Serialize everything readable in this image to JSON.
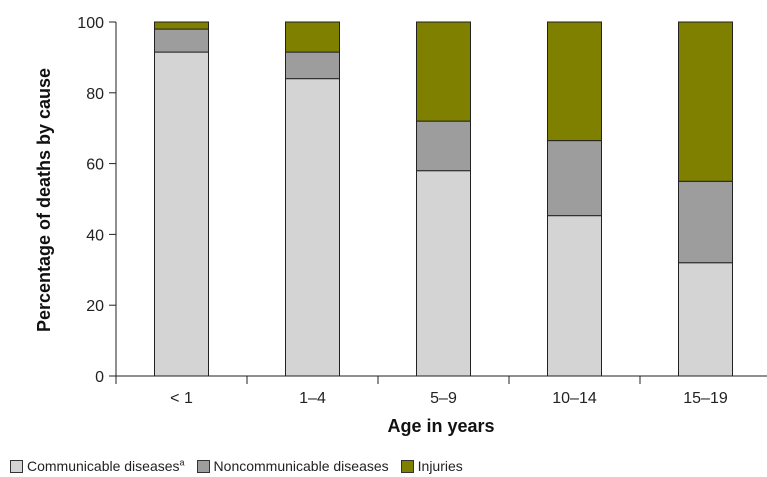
{
  "chart_data": {
    "type": "bar",
    "stacked": true,
    "categories": [
      "< 1",
      "1–4",
      "5–9",
      "10–14",
      "15–19"
    ],
    "series": [
      {
        "name": "Communicable diseases",
        "name_sup": "a",
        "color": "#d4d4d4",
        "values": [
          91.5,
          84,
          58,
          45.3,
          32
        ]
      },
      {
        "name": "Noncommunicable diseases",
        "color": "#9d9d9d",
        "values": [
          6.5,
          7.5,
          14,
          21.2,
          23
        ]
      },
      {
        "name": "Injuries",
        "color": "#7f7f00",
        "values": [
          2,
          8.5,
          28,
          33.5,
          45
        ]
      }
    ],
    "xlabel": "Age in years",
    "ylabel": "Percentage of deaths by cause",
    "ylim": [
      0,
      100
    ],
    "yticks": [
      0,
      20,
      40,
      60,
      80,
      100
    ],
    "grid": false,
    "legend_position": "bottom-left"
  }
}
